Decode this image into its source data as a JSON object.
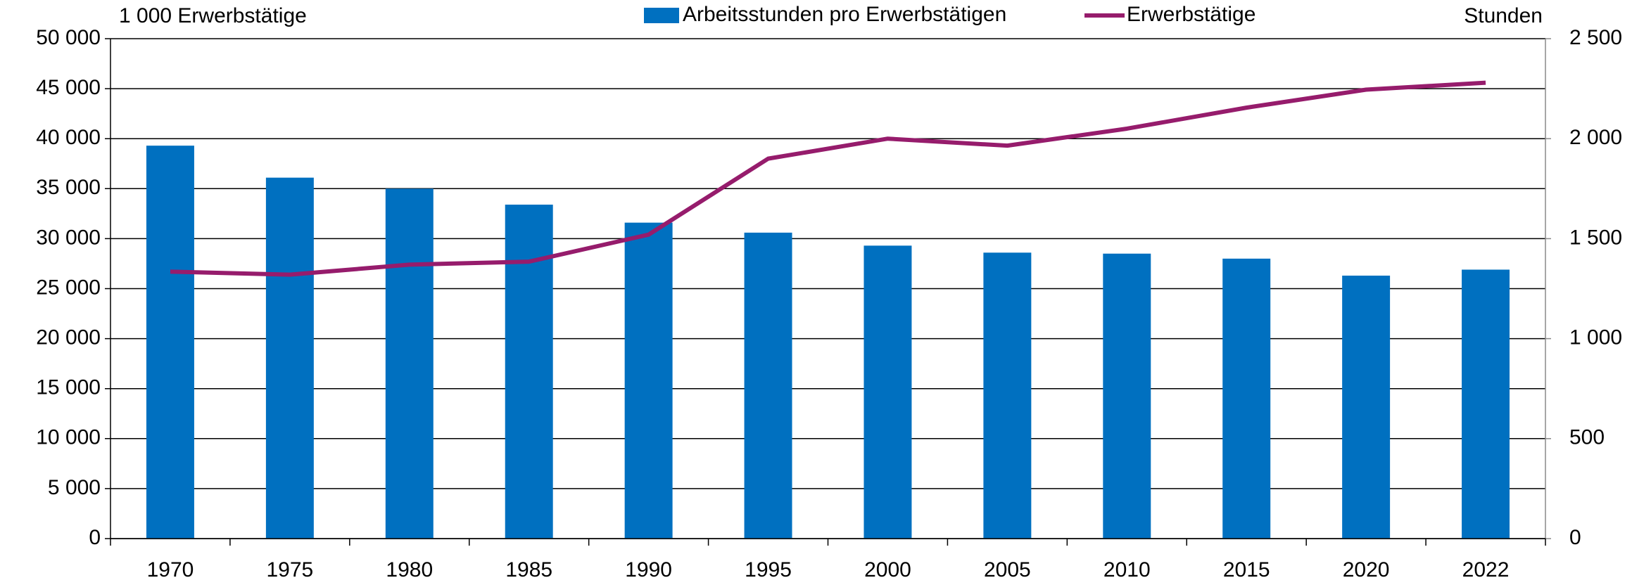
{
  "chart_data": {
    "type": "bar_line",
    "y_label": "1 000 Erwerbstätige",
    "y2_label": "Stunden",
    "categories": [
      "1970",
      "1975",
      "1980",
      "1985",
      "1990",
      "1995",
      "2000",
      "2005",
      "2010",
      "2015",
      "2020",
      "2022"
    ],
    "series": [
      {
        "name": "Arbeitsstunden pro Erwerbstätigen",
        "type": "bar",
        "axis": "y2",
        "color": "#0070c0",
        "values": [
          1965,
          1805,
          1750,
          1670,
          1580,
          1530,
          1465,
          1430,
          1425,
          1400,
          1315,
          1345
        ]
      },
      {
        "name": "Erwerbstätige",
        "type": "line",
        "color": "#961c6c",
        "values": [
          26700,
          26400,
          27400,
          27700,
          30400,
          38000,
          40000,
          39300,
          41000,
          43100,
          44900,
          45600
        ]
      }
    ],
    "ylim": [
      0,
      50000
    ],
    "yticks": [
      0,
      {
        "value": 5000,
        "label": "5 000"
      },
      {
        "value": 10000,
        "label": "10 000"
      },
      {
        "value": 15000,
        "label": "15 000"
      },
      {
        "value": 20000,
        "label": "20 000"
      },
      {
        "value": 25000,
        "label": "25 000"
      },
      {
        "value": 30000,
        "label": "30 000"
      },
      {
        "value": 35000,
        "label": "35 000"
      },
      {
        "value": 40000,
        "label": "40 000"
      },
      {
        "value": 45000,
        "label": "45 000"
      },
      {
        "value": 50000,
        "label": "50 000"
      }
    ],
    "y2lim": [
      0,
      2500
    ],
    "y2ticks": [
      0,
      500,
      {
        "value": 1000,
        "label": "1 000"
      },
      {
        "value": 1500,
        "label": "1 500"
      },
      {
        "value": 2000,
        "label": "2 000"
      },
      {
        "value": 2500,
        "label": "2 500"
      }
    ],
    "grid": true
  }
}
